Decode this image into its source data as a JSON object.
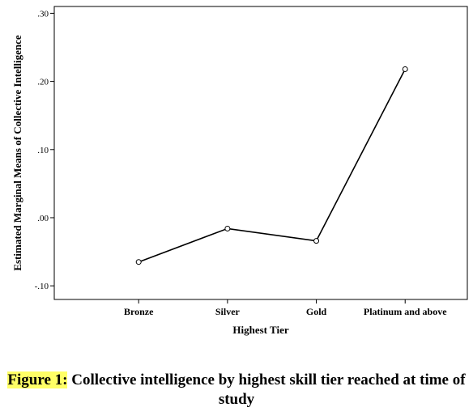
{
  "chart_data": {
    "type": "line",
    "categories": [
      "Bronze",
      "Silver",
      "Gold",
      "Platinum and above"
    ],
    "values": [
      -0.065,
      -0.016,
      -0.034,
      0.218
    ],
    "ylim": [
      -0.12,
      0.31
    ],
    "yticks": [
      -0.1,
      0.0,
      0.1,
      0.2,
      0.3
    ],
    "ytick_labels": [
      "-.10",
      ".00",
      ".10",
      ".20",
      ".30"
    ],
    "xlabel": "Highest Tier",
    "ylabel": "Estimated Marginal Means of Collective Intelligence",
    "grid": false,
    "legend": "none",
    "line_color": "#000000",
    "marker": "open-circle"
  },
  "caption": {
    "label": "Figure 1:",
    "text": " Collective intelligence by highest skill tier reached at time of study"
  }
}
